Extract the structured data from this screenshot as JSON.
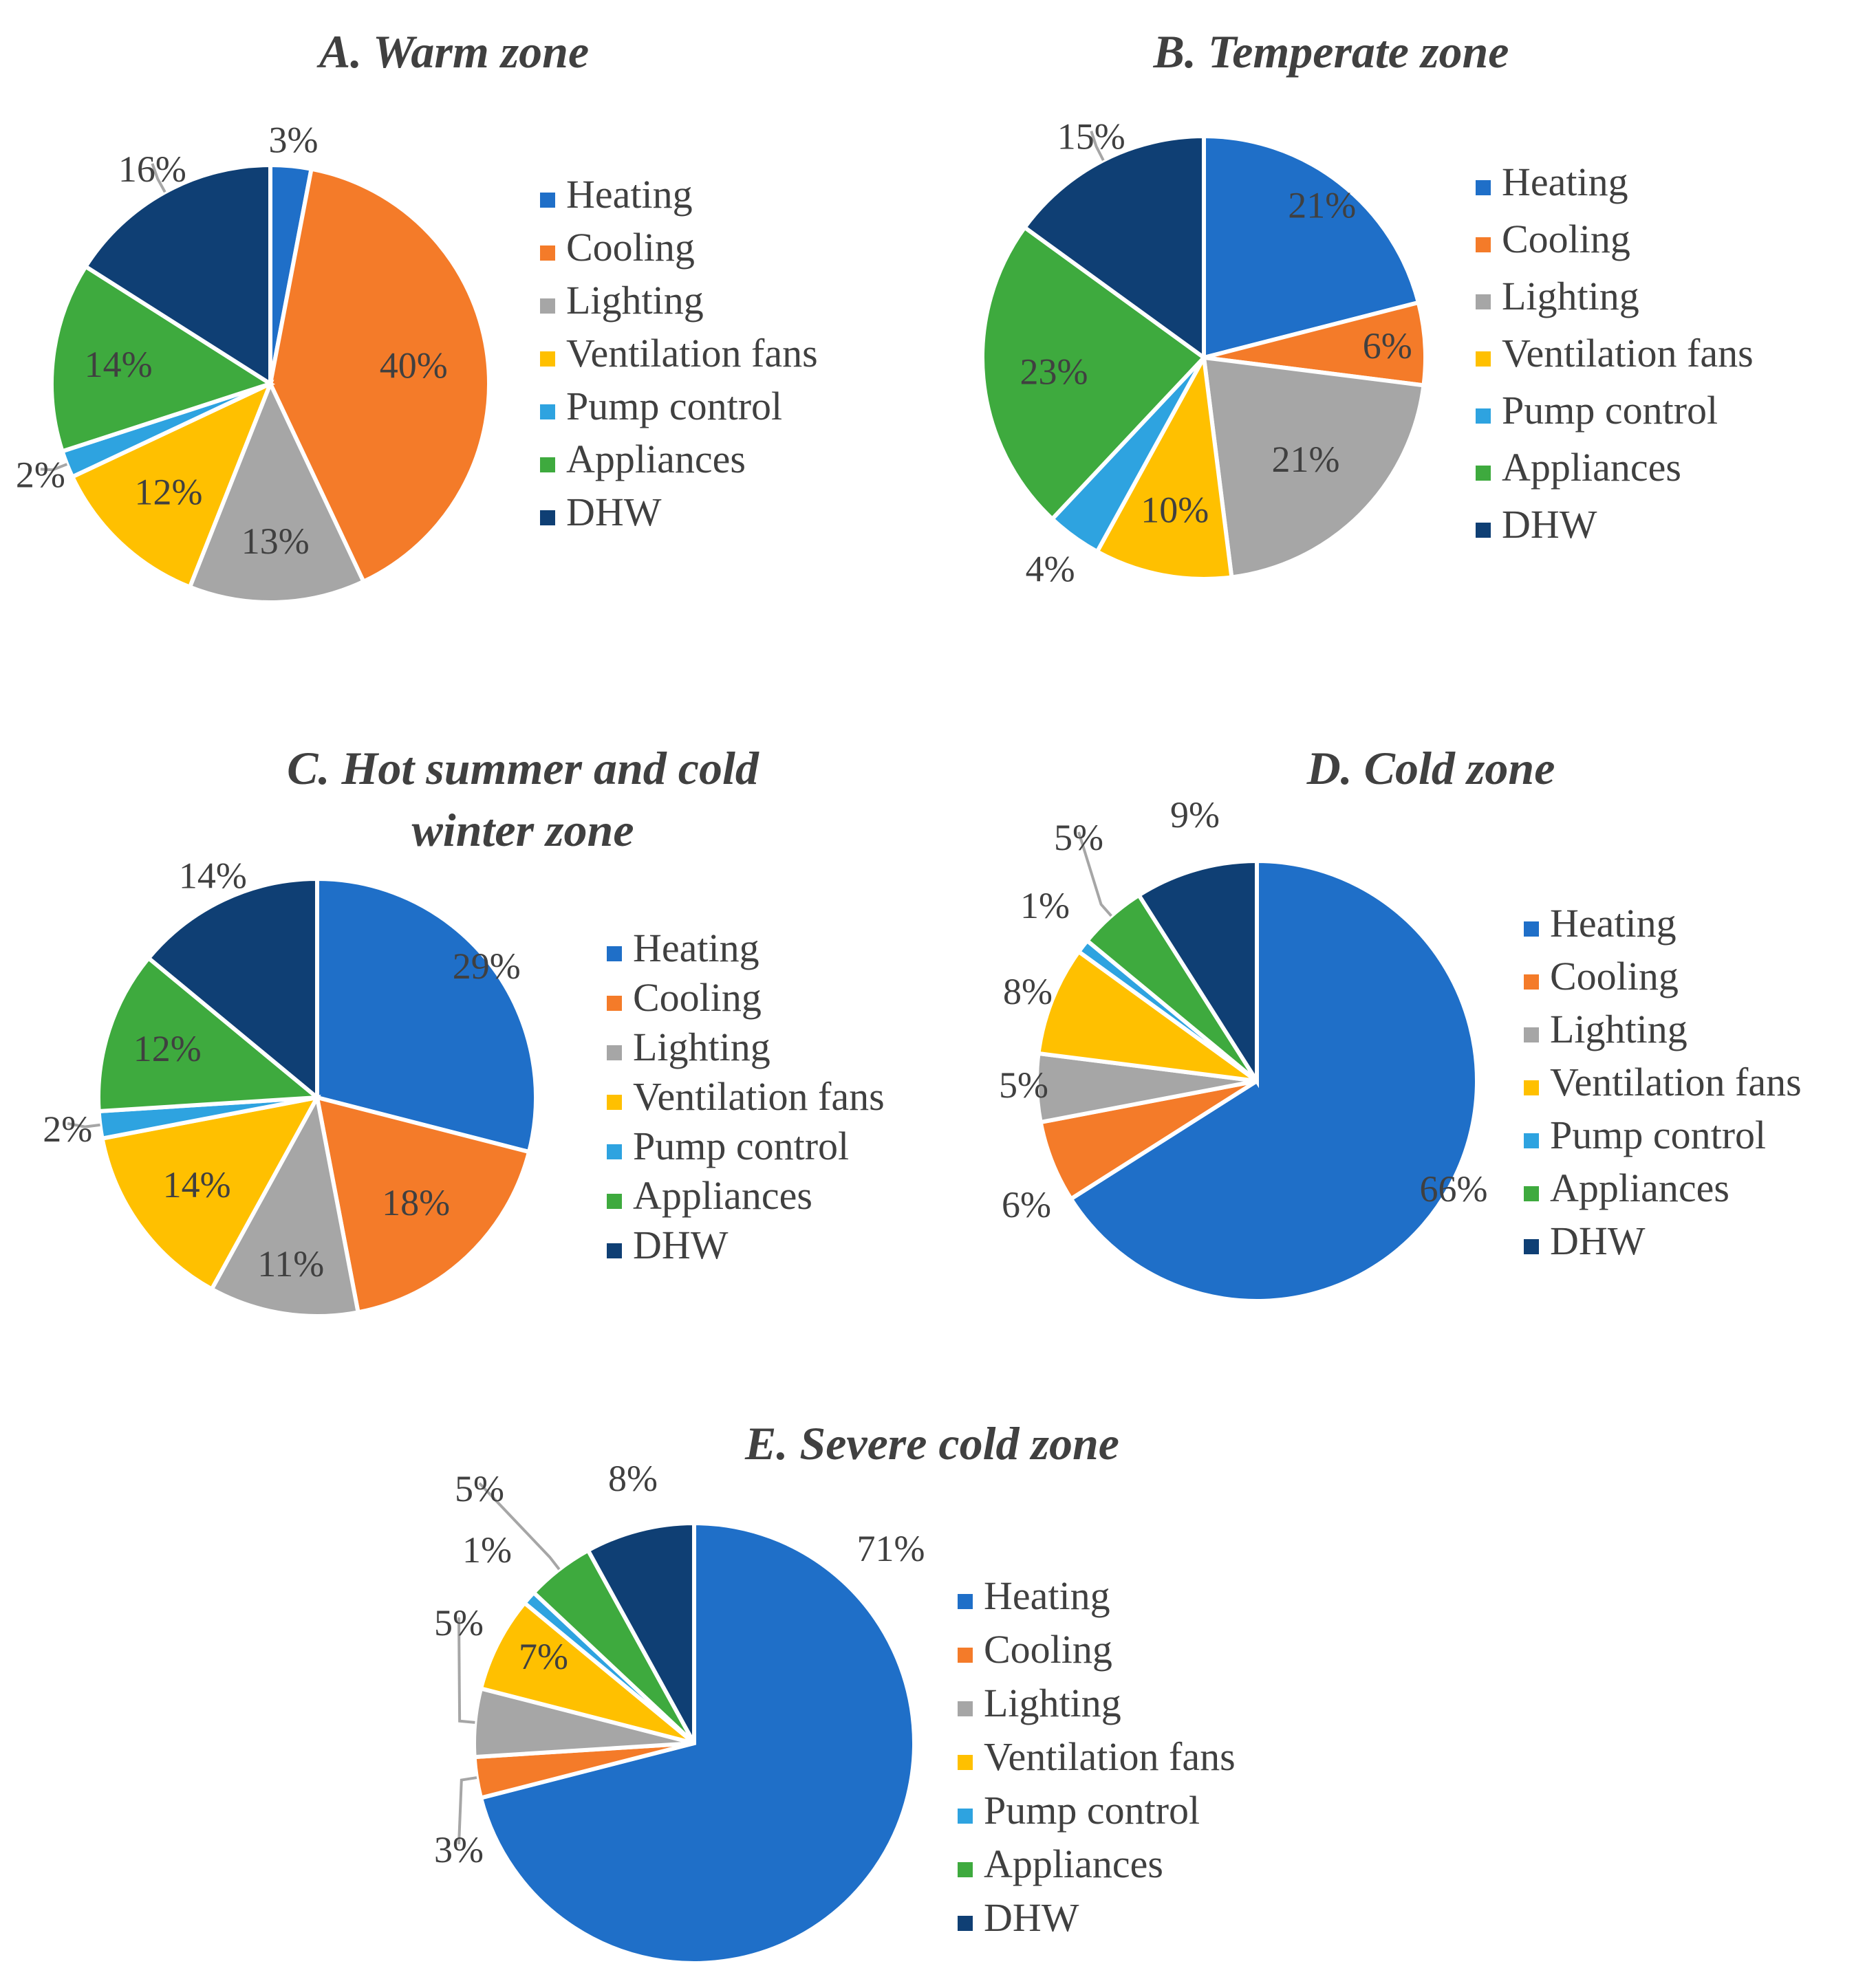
{
  "legend_labels": [
    "Heating",
    "Cooling",
    "Lighting",
    "Ventilation fans",
    "Pump control",
    "Appliances",
    "DHW"
  ],
  "colors": [
    "#1f6fc8",
    "#f47b29",
    "#a6a6a6",
    "#ffc000",
    "#2ea3e0",
    "#3eaa3e",
    "#0f3f74"
  ],
  "chart_data": [
    {
      "type": "pie",
      "title": [
        "A. Warm zone"
      ],
      "categories": [
        "Heating",
        "Cooling",
        "Lighting",
        "Ventilation fans",
        "Pump control",
        "Appliances",
        "DHW"
      ],
      "values": [
        3,
        40,
        13,
        12,
        2,
        14,
        16
      ],
      "labels": [
        "3%",
        "40%",
        "13%",
        "12%",
        "2%",
        "14%",
        "16%"
      ]
    },
    {
      "type": "pie",
      "title": [
        "B. Temperate zone"
      ],
      "categories": [
        "Heating",
        "Cooling",
        "Lighting",
        "Ventilation fans",
        "Pump control",
        "Appliances",
        "DHW"
      ],
      "values": [
        21,
        6,
        21,
        10,
        4,
        23,
        15
      ],
      "labels": [
        "21%",
        "6%",
        "21%",
        "10%",
        "4%",
        "23%",
        "15%"
      ]
    },
    {
      "type": "pie",
      "title": [
        "C. Hot summer and cold",
        "winter zone"
      ],
      "categories": [
        "Heating",
        "Cooling",
        "Lighting",
        "Ventilation fans",
        "Pump control",
        "Appliances",
        "DHW"
      ],
      "values": [
        29,
        18,
        11,
        14,
        2,
        12,
        14
      ],
      "labels": [
        "29%",
        "18%",
        "11%",
        "14%",
        "2%",
        "12%",
        "14%"
      ]
    },
    {
      "type": "pie",
      "title": [
        "D. Cold zone"
      ],
      "categories": [
        "Heating",
        "Cooling",
        "Lighting",
        "Ventilation fans",
        "Pump control",
        "Appliances",
        "DHW"
      ],
      "values": [
        66,
        6,
        5,
        8,
        1,
        5,
        9
      ],
      "labels": [
        "66%",
        "6%",
        "5%",
        "8%",
        "1%",
        "5%",
        "9%"
      ]
    },
    {
      "type": "pie",
      "title": [
        "E. Severe cold zone"
      ],
      "categories": [
        "Heating",
        "Cooling",
        "Lighting",
        "Ventilation fans",
        "Pump control",
        "Appliances",
        "DHW"
      ],
      "values": [
        71,
        3,
        5,
        7,
        1,
        5,
        8
      ],
      "labels": [
        "71%",
        "3%",
        "5%",
        "7%",
        "1%",
        "5%",
        "8%"
      ]
    }
  ]
}
